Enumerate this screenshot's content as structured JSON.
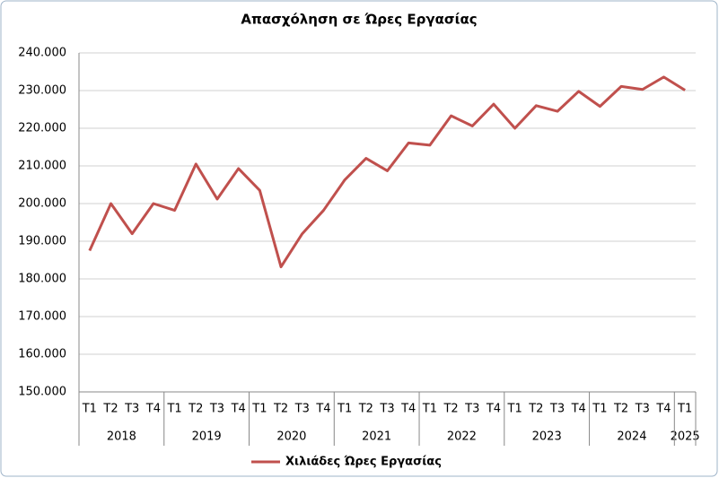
{
  "chart_data": {
    "type": "line",
    "title": "Απασχόληση σε Ώρες Εργασίας",
    "category_groups": [
      {
        "name": "2018",
        "categories": [
          "T1",
          "T2",
          "T3",
          "T4"
        ]
      },
      {
        "name": "2019",
        "categories": [
          "T1",
          "T2",
          "T3",
          "T4"
        ]
      },
      {
        "name": "2020",
        "categories": [
          "T1",
          "T2",
          "T3",
          "T4"
        ]
      },
      {
        "name": "2021",
        "categories": [
          "T1",
          "T2",
          "T3",
          "T4"
        ]
      },
      {
        "name": "2022",
        "categories": [
          "T1",
          "T2",
          "T3",
          "T4"
        ]
      },
      {
        "name": "2023",
        "categories": [
          "T1",
          "T2",
          "T3",
          "T4"
        ]
      },
      {
        "name": "2024",
        "categories": [
          "T1",
          "T2",
          "T3",
          "T4"
        ]
      },
      {
        "name": "2025",
        "categories": [
          "T1"
        ]
      }
    ],
    "series": [
      {
        "name": "Χιλιάδες Ώρες Εργασίας",
        "color": "#c0504d",
        "values": [
          187500,
          200000,
          192000,
          200000,
          198200,
          210500,
          201200,
          209300,
          203500,
          183200,
          192000,
          198200,
          206300,
          212000,
          208700,
          216100,
          215500,
          223300,
          220600,
          226400,
          220000,
          226000,
          224500,
          229800,
          225800,
          231100,
          230300,
          233600,
          230100
        ]
      }
    ],
    "ylim": [
      150000,
      240000
    ],
    "yticks": [
      {
        "value": 150000,
        "label": "150.000"
      },
      {
        "value": 160000,
        "label": "160.000"
      },
      {
        "value": 170000,
        "label": "170.000"
      },
      {
        "value": 180000,
        "label": "180.000"
      },
      {
        "value": 190000,
        "label": "190.000"
      },
      {
        "value": 200000,
        "label": "200.000"
      },
      {
        "value": 210000,
        "label": "210.000"
      },
      {
        "value": 220000,
        "label": "220.000"
      },
      {
        "value": 230000,
        "label": "230.000"
      },
      {
        "value": 240000,
        "label": "240.000"
      }
    ],
    "grid": true,
    "legend": "bottom"
  }
}
